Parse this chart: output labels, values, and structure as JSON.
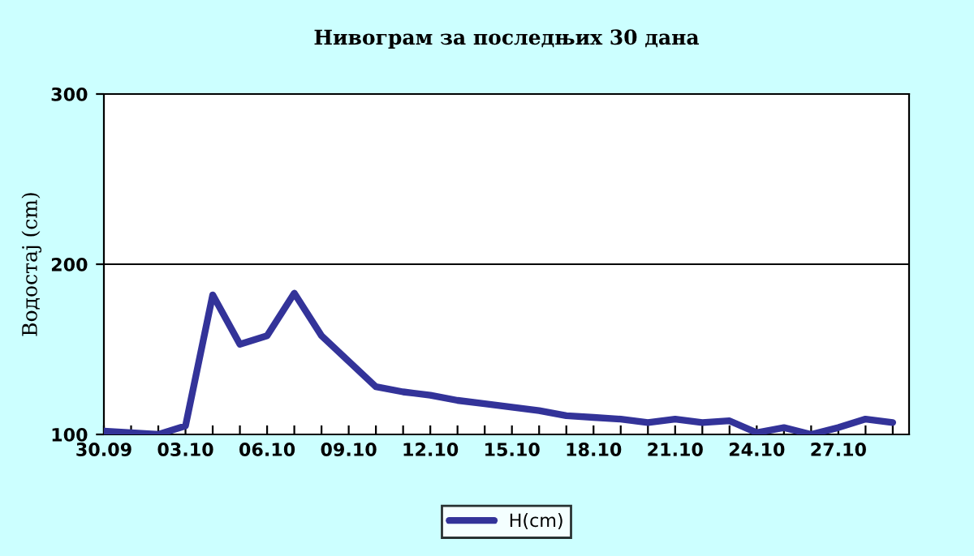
{
  "chart_data": {
    "type": "line",
    "title": "Нивограм за последњих 30 дана",
    "ylabel": "Водостај (cm)",
    "categories": [
      "30.09",
      null,
      null,
      "03.10",
      null,
      null,
      "06.10",
      null,
      null,
      "09.10",
      null,
      null,
      "12.10",
      null,
      null,
      "15.10",
      null,
      null,
      "18.10",
      null,
      null,
      "21.10",
      null,
      null,
      "24.10",
      null,
      null,
      "27.10",
      null,
      null
    ],
    "series": [
      {
        "name": "H(cm)",
        "color": "#333399",
        "values": [
          102,
          101,
          100,
          105,
          182,
          153,
          158,
          183,
          158,
          143,
          128,
          125,
          123,
          120,
          118,
          116,
          114,
          111,
          110,
          109,
          107,
          109,
          107,
          108,
          101,
          104,
          100,
          104,
          109,
          107
        ]
      }
    ],
    "ylim": [
      100,
      300
    ],
    "yticks": [
      100,
      200,
      300
    ],
    "grid": "y",
    "legend": "bottom",
    "marker": "none",
    "line_style": "solid"
  }
}
